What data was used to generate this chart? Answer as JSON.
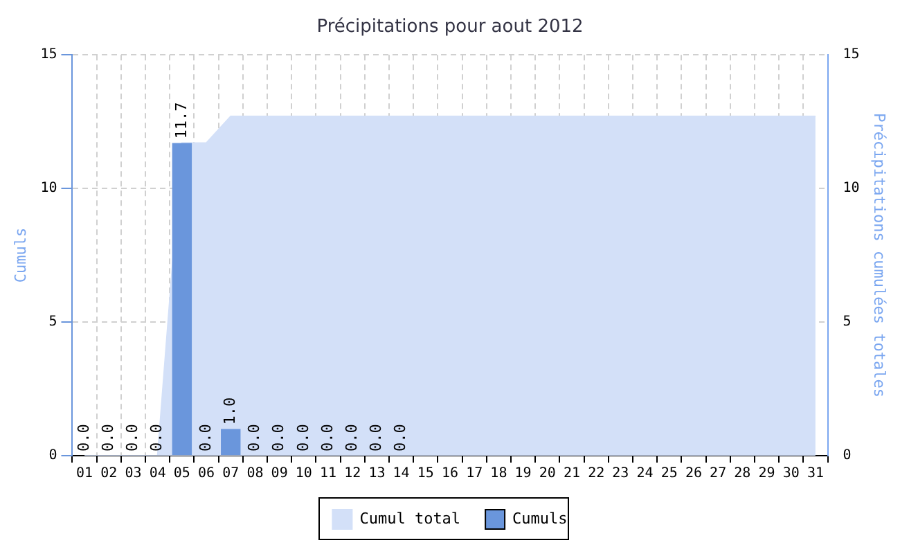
{
  "chart_data": {
    "type": "bar",
    "title": "Précipitations pour aout 2012",
    "ylabel": "Cumuls",
    "y2label": "Précipitations cumulées totales",
    "categories": [
      "01",
      "02",
      "03",
      "04",
      "05",
      "06",
      "07",
      "08",
      "09",
      "10",
      "11",
      "12",
      "13",
      "14",
      "15",
      "16",
      "17",
      "18",
      "19",
      "20",
      "21",
      "22",
      "23",
      "24",
      "25",
      "26",
      "27",
      "28",
      "29",
      "30",
      "31"
    ],
    "series": [
      {
        "name": "Cumul total",
        "type": "area",
        "axis": "y2",
        "color": "#d3e0f8",
        "values": [
          0,
          0,
          0,
          0,
          11.7,
          11.7,
          12.7,
          12.7,
          12.7,
          12.7,
          12.7,
          12.7,
          12.7,
          12.7,
          12.7,
          12.7,
          12.7,
          12.7,
          12.7,
          12.7,
          12.7,
          12.7,
          12.7,
          12.7,
          12.7,
          12.7,
          12.7,
          12.7,
          12.7,
          12.7,
          12.7
        ]
      },
      {
        "name": "Cumuls",
        "color": "#6a96dc",
        "values": [
          0,
          0,
          0,
          0,
          11.7,
          0,
          1.0,
          0,
          0,
          0,
          0,
          0,
          0,
          0,
          null,
          null,
          null,
          null,
          null,
          null,
          null,
          null,
          null,
          null,
          null,
          null,
          null,
          null,
          null,
          null,
          null
        ],
        "value_labels": [
          "0.0",
          "0.0",
          "0.0",
          "0.0",
          "11.7",
          "0.0",
          "1.0",
          "0.0",
          "0.0",
          "0.0",
          "0.0",
          "0.0",
          "0.0",
          "0.0",
          null,
          null,
          null,
          null,
          null,
          null,
          null,
          null,
          null,
          null,
          null,
          null,
          null,
          null,
          null,
          null,
          null
        ]
      }
    ],
    "ylim": [
      0,
      15
    ],
    "yticks": [
      0,
      5,
      10,
      15
    ],
    "y2lim": [
      0,
      15
    ],
    "y2ticks": [
      0,
      5,
      10,
      15
    ],
    "grid": true,
    "legend": "bottom"
  }
}
